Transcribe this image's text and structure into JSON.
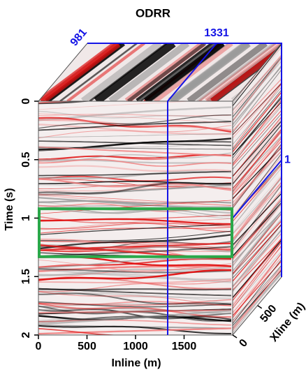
{
  "chart_data": {
    "type": "seismic-cube",
    "title": "ODRR",
    "x_label": "Inline (m)",
    "y_label": "Time (s)",
    "z_label": "Xline (m)",
    "xlim": [
      0,
      2000
    ],
    "xticks": [
      0,
      500,
      1000,
      1500
    ],
    "ylim": [
      0,
      2
    ],
    "yticks": [
      0,
      0.5,
      1,
      1.5,
      2
    ],
    "zlim": [
      0,
      981
    ],
    "zticks": [
      0,
      500
    ],
    "slices": {
      "inline": 1331,
      "xline": 981,
      "time": 1
    },
    "slice_color": "#1414e6",
    "box": {
      "time": [
        0.92,
        1.33
      ],
      "color": "#2aa84a"
    }
  }
}
